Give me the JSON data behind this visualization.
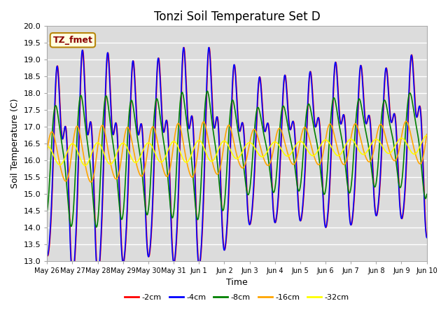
{
  "title": "Tonzi Soil Temperature Set D",
  "xlabel": "Time",
  "ylabel": "Soil Temperature (C)",
  "ylim": [
    13.0,
    20.0
  ],
  "yticks": [
    13.0,
    13.5,
    14.0,
    14.5,
    15.0,
    15.5,
    16.0,
    16.5,
    17.0,
    17.5,
    18.0,
    18.5,
    19.0,
    19.5,
    20.0
  ],
  "xtick_labels": [
    "May 26",
    "May 27",
    "May 28",
    "May 29",
    "May 30",
    "May 31",
    "Jun 1",
    "Jun 2",
    "Jun 3",
    "Jun 4",
    "Jun 5",
    "Jun 6",
    "Jun 7",
    "Jun 8",
    "Jun 9",
    "Jun 10"
  ],
  "series_colors": [
    "red",
    "blue",
    "green",
    "orange",
    "yellow"
  ],
  "series_labels": [
    "-2cm",
    "-4cm",
    "-8cm",
    "-16cm",
    "-32cm"
  ],
  "legend_label": "TZ_fmet",
  "axes_bg": "#dcdcdc",
  "grid_color": "white"
}
